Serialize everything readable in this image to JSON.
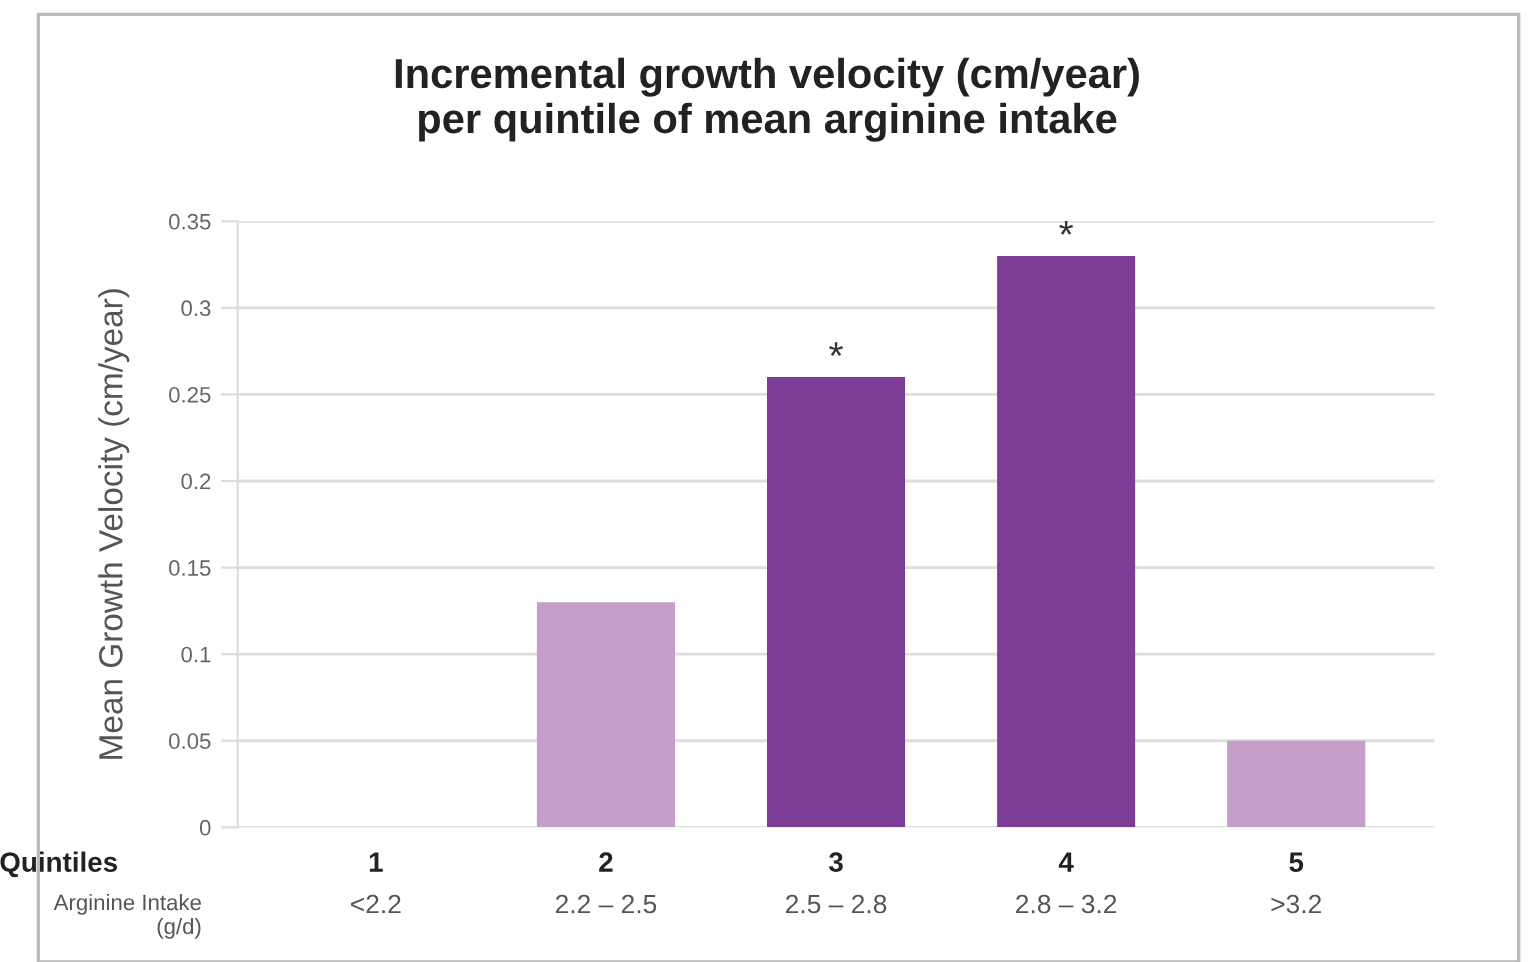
{
  "chart_data": {
    "type": "bar",
    "title": "Incremental growth velocity (cm/year)\nper quintile of mean arginine intake",
    "ylabel": "Mean Growth Velocity (cm/year)",
    "categories": [
      "1\n<2.2",
      "2\n2.2 – 2.5",
      "3\n2.5 – 2.8",
      "4\n2.8 – 3.2",
      "5\n>3.2"
    ],
    "values": [
      0,
      0.13,
      0.26,
      0.33,
      0.05
    ],
    "colors": [
      "#c49dc9",
      "#c49dc9",
      "#7d3c96",
      "#7d3c96",
      "#c49dc9"
    ],
    "ylim": [
      0,
      0.35
    ],
    "yticks": [
      0,
      0.05,
      0.1,
      0.15,
      0.2,
      0.25,
      0.3,
      0.35
    ],
    "grid": "y",
    "annotations": [
      "Quintiles",
      "Arginine Intake\n(g/d)",
      {
        "text": "*",
        "x": "3\n2.5 – 2.8",
        "y": 0.26
      },
      {
        "text": "*",
        "x": "4\n2.8 – 3.2",
        "y": 0.33
      }
    ]
  }
}
